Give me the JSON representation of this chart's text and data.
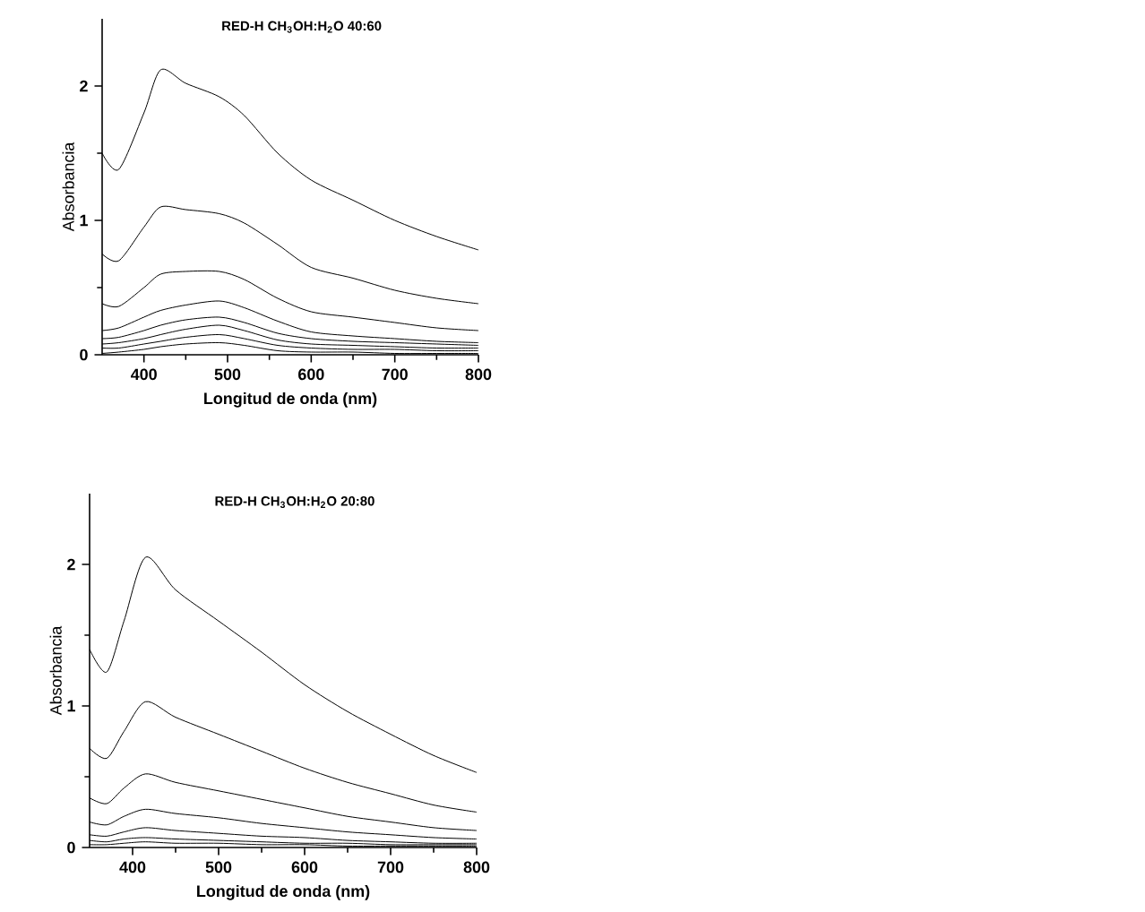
{
  "chart_data": [
    {
      "type": "line",
      "title": "RED-H CH$_{3}$OH:H$_{2}$O 40:60",
      "xlabel": "Longitud de onda (nm)",
      "ylabel": "Absorbancia",
      "xlim": [
        350,
        800
      ],
      "ylim": [
        0,
        2.5
      ],
      "xticks": [
        400,
        500,
        600,
        700,
        800
      ],
      "yticks": [
        0,
        1,
        2
      ],
      "x": [
        350,
        370,
        400,
        420,
        450,
        490,
        520,
        560,
        600,
        650,
        700,
        750,
        800
      ],
      "series": [
        {
          "color": "#000000",
          "values": [
            1.5,
            1.38,
            1.8,
            2.12,
            2.02,
            1.92,
            1.78,
            1.5,
            1.3,
            1.15,
            1.0,
            0.88,
            0.78
          ]
        },
        {
          "color": "#000000",
          "values": [
            0.75,
            0.7,
            0.95,
            1.1,
            1.08,
            1.05,
            0.98,
            0.82,
            0.65,
            0.57,
            0.48,
            0.42,
            0.38
          ]
        },
        {
          "color": "#000000",
          "values": [
            0.38,
            0.36,
            0.5,
            0.6,
            0.62,
            0.62,
            0.56,
            0.42,
            0.32,
            0.28,
            0.24,
            0.2,
            0.18
          ]
        },
        {
          "color": "#000000",
          "values": [
            0.18,
            0.2,
            0.28,
            0.33,
            0.37,
            0.4,
            0.35,
            0.25,
            0.17,
            0.14,
            0.12,
            0.1,
            0.09
          ]
        },
        {
          "color": "#000000",
          "values": [
            0.12,
            0.13,
            0.18,
            0.22,
            0.26,
            0.28,
            0.24,
            0.16,
            0.12,
            0.1,
            0.09,
            0.08,
            0.07
          ]
        },
        {
          "color": "#000000",
          "values": [
            0.08,
            0.09,
            0.12,
            0.15,
            0.19,
            0.22,
            0.18,
            0.11,
            0.08,
            0.07,
            0.06,
            0.05,
            0.05
          ]
        },
        {
          "color": "#000000",
          "values": [
            0.05,
            0.05,
            0.08,
            0.1,
            0.13,
            0.15,
            0.12,
            0.07,
            0.05,
            0.04,
            0.04,
            0.03,
            0.03
          ]
        },
        {
          "color": "#000000",
          "values": [
            0.01,
            0.02,
            0.04,
            0.06,
            0.08,
            0.09,
            0.07,
            0.03,
            0.02,
            0.02,
            0.01,
            0.01,
            0.01
          ]
        }
      ]
    },
    {
      "type": "line",
      "title": "RED-H CH$_{3}$OH:H$_{2}$O 20:80",
      "xlabel": "Longitud de onda (nm)",
      "ylabel": "Absorbancia",
      "xlim": [
        350,
        800
      ],
      "ylim": [
        0,
        2.5
      ],
      "xticks": [
        400,
        500,
        600,
        700,
        800
      ],
      "yticks": [
        0,
        1,
        2
      ],
      "x": [
        350,
        370,
        390,
        415,
        450,
        500,
        550,
        600,
        650,
        700,
        750,
        800
      ],
      "series": [
        {
          "color": "#000000",
          "values": [
            1.4,
            1.24,
            1.6,
            2.05,
            1.82,
            1.6,
            1.38,
            1.15,
            0.96,
            0.8,
            0.65,
            0.53
          ]
        },
        {
          "color": "#000000",
          "values": [
            0.7,
            0.63,
            0.82,
            1.03,
            0.92,
            0.8,
            0.68,
            0.56,
            0.46,
            0.38,
            0.3,
            0.25
          ]
        },
        {
          "color": "#000000",
          "values": [
            0.35,
            0.31,
            0.42,
            0.52,
            0.46,
            0.4,
            0.34,
            0.28,
            0.22,
            0.18,
            0.14,
            0.12
          ]
        },
        {
          "color": "#000000",
          "values": [
            0.18,
            0.16,
            0.22,
            0.27,
            0.24,
            0.21,
            0.17,
            0.14,
            0.11,
            0.09,
            0.07,
            0.06
          ]
        },
        {
          "color": "#000000",
          "values": [
            0.09,
            0.08,
            0.11,
            0.14,
            0.12,
            0.1,
            0.08,
            0.07,
            0.05,
            0.04,
            0.03,
            0.03
          ]
        },
        {
          "color": "#000000",
          "values": [
            0.05,
            0.04,
            0.06,
            0.07,
            0.06,
            0.05,
            0.04,
            0.03,
            0.03,
            0.02,
            0.02,
            0.02
          ]
        },
        {
          "color": "#000000",
          "values": [
            0.02,
            0.02,
            0.03,
            0.04,
            0.03,
            0.03,
            0.02,
            0.02,
            0.01,
            0.01,
            0.01,
            0.01
          ]
        }
      ]
    }
  ]
}
